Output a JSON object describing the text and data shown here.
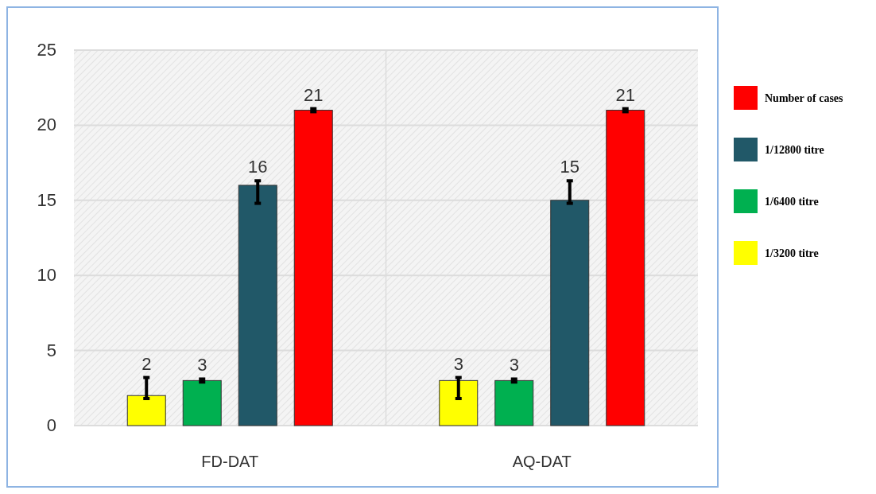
{
  "chart_data": {
    "type": "bar",
    "categories": [
      "FD-DAT",
      "AQ-DAT"
    ],
    "series": [
      {
        "name": "1/3200 titre",
        "color": "#ffff00",
        "values": [
          2,
          3
        ],
        "errors": [
          [
            1.8,
            3.2
          ],
          [
            1.8,
            3.2
          ]
        ]
      },
      {
        "name": "1/6400 titre",
        "color": "#00b050",
        "values": [
          3,
          3
        ],
        "errors": [
          [
            2.9,
            3.1
          ],
          [
            2.9,
            3.1
          ]
        ]
      },
      {
        "name": "1/12800 titre",
        "color": "#215868",
        "values": [
          16,
          15
        ],
        "errors": [
          [
            14.8,
            16.3
          ],
          [
            14.8,
            16.3
          ]
        ]
      },
      {
        "name": "Number of cases",
        "color": "#ff0000",
        "values": [
          21,
          21
        ],
        "errors": [
          [
            20.9,
            21.1
          ],
          [
            20.9,
            21.1
          ]
        ]
      }
    ],
    "ylim": [
      0,
      25
    ],
    "yticks": [
      0,
      5,
      10,
      15,
      20,
      25
    ],
    "grid": "y",
    "legend": "right",
    "data_labels": true
  }
}
